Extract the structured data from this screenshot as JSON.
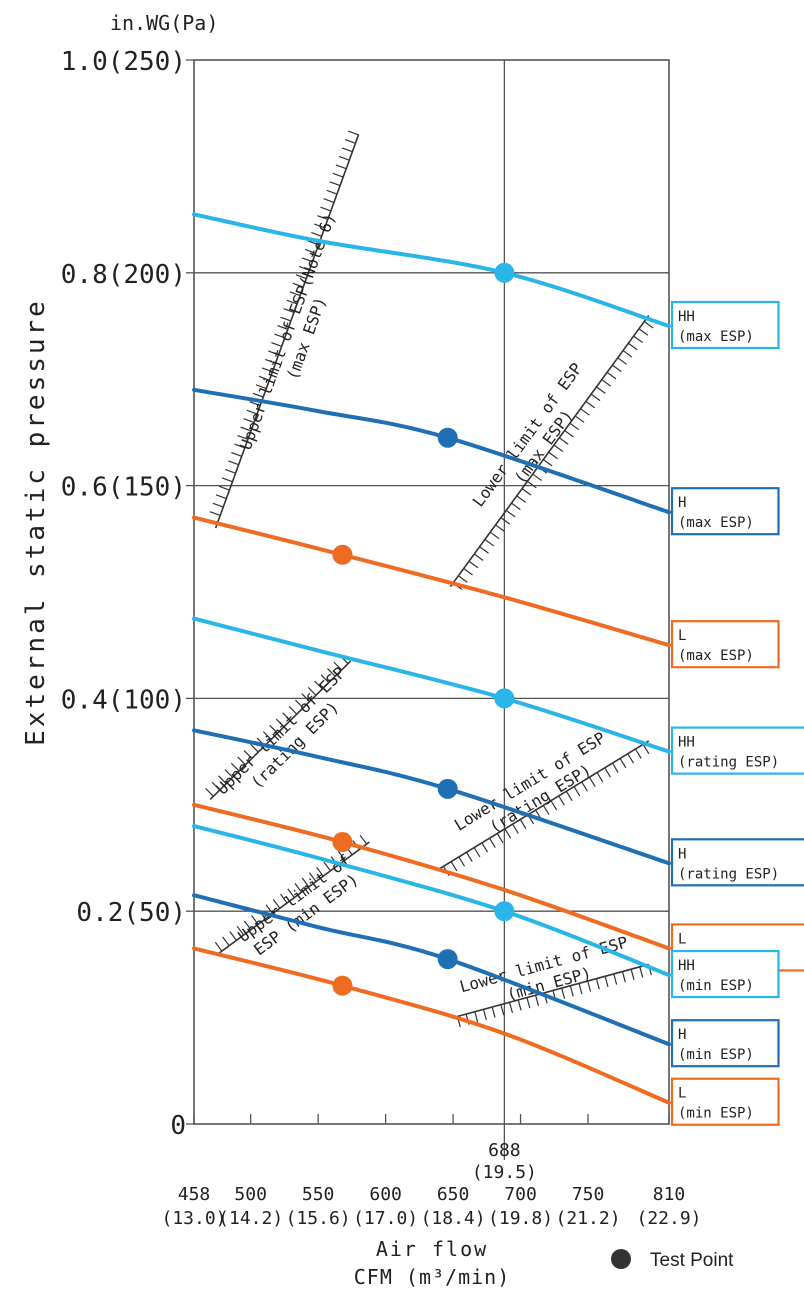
{
  "chart_data": {
    "type": "line",
    "title": "",
    "y_unit_label": "in.WG(Pa)",
    "ylabel": "External static pressure",
    "xlabel": [
      "Air flow",
      "CFM (m³/min)"
    ],
    "xlim": [
      458,
      810
    ],
    "ylim": [
      0,
      1.0
    ],
    "y_ticks": [
      {
        "value": 0,
        "label": "0"
      },
      {
        "value": 0.2,
        "label": "0.2(50)"
      },
      {
        "value": 0.4,
        "label": "0.4(100)"
      },
      {
        "value": 0.6,
        "label": "0.6(150)"
      },
      {
        "value": 0.8,
        "label": "0.8(200)"
      },
      {
        "value": 1.0,
        "label": "1.0(250)"
      }
    ],
    "x_ticks": [
      {
        "value": 458,
        "label": "458",
        "sub": "(13.0)"
      },
      {
        "value": 500,
        "label": "500",
        "sub": "(14.2)"
      },
      {
        "value": 550,
        "label": "550",
        "sub": "(15.6)"
      },
      {
        "value": 600,
        "label": "600",
        "sub": "(17.0)"
      },
      {
        "value": 650,
        "label": "650",
        "sub": "(18.4)"
      },
      {
        "value": 700,
        "label": "700",
        "sub": "(19.8)"
      },
      {
        "value": 750,
        "label": "750",
        "sub": "(21.2)"
      },
      {
        "value": 810,
        "label": "810",
        "sub": "(22.9)"
      }
    ],
    "rated_airflow": {
      "value": 688,
      "label": "688",
      "sub": "(19.5)"
    },
    "grid_y_values": [
      0.2,
      0.4,
      0.6,
      0.8
    ],
    "colors": {
      "HH": "#29b5e8",
      "H": "#1f6fb5",
      "L": "#ef6b21",
      "grid": "#555555",
      "limit": "#333333"
    },
    "series": [
      {
        "label": "HH (max ESP)",
        "fan": "HH",
        "x": [
          458,
          550,
          688,
          810
        ],
        "y": [
          0.855,
          0.83,
          0.8,
          0.75
        ]
      },
      {
        "label": "H (max ESP)",
        "fan": "H",
        "x": [
          458,
          550,
          646,
          810
        ],
        "y": [
          0.69,
          0.67,
          0.645,
          0.575
        ]
      },
      {
        "label": "L (max ESP)",
        "fan": "L",
        "x": [
          458,
          568,
          688,
          810
        ],
        "y": [
          0.57,
          0.535,
          0.495,
          0.45
        ]
      },
      {
        "label": "HH (rating ESP)",
        "fan": "HH",
        "x": [
          458,
          550,
          688,
          810
        ],
        "y": [
          0.475,
          0.445,
          0.4,
          0.35
        ]
      },
      {
        "label": "H (rating ESP)",
        "fan": "H",
        "x": [
          458,
          550,
          646,
          810
        ],
        "y": [
          0.37,
          0.345,
          0.315,
          0.245
        ]
      },
      {
        "label": "L (rating ESP)",
        "fan": "L",
        "x": [
          458,
          568,
          688,
          810
        ],
        "y": [
          0.3,
          0.265,
          0.22,
          0.165
        ]
      },
      {
        "label": "HH (min ESP)",
        "fan": "HH",
        "x": [
          458,
          550,
          688,
          810
        ],
        "y": [
          0.28,
          0.25,
          0.2,
          0.14
        ]
      },
      {
        "label": "H (min ESP)",
        "fan": "H",
        "x": [
          458,
          550,
          646,
          810
        ],
        "y": [
          0.215,
          0.185,
          0.155,
          0.075
        ]
      },
      {
        "label": "L (min ESP)",
        "fan": "L",
        "x": [
          458,
          568,
          688,
          810
        ],
        "y": [
          0.165,
          0.13,
          0.085,
          0.02
        ]
      }
    ],
    "test_points": [
      {
        "x": 688,
        "y": 0.8,
        "fan": "HH"
      },
      {
        "x": 646,
        "y": 0.645,
        "fan": "H"
      },
      {
        "x": 568,
        "y": 0.535,
        "fan": "L"
      },
      {
        "x": 688,
        "y": 0.4,
        "fan": "HH"
      },
      {
        "x": 646,
        "y": 0.315,
        "fan": "H"
      },
      {
        "x": 568,
        "y": 0.265,
        "fan": "L"
      },
      {
        "x": 688,
        "y": 0.2,
        "fan": "HH"
      },
      {
        "x": 646,
        "y": 0.155,
        "fan": "H"
      },
      {
        "x": 568,
        "y": 0.13,
        "fan": "L"
      }
    ],
    "limit_lines": [
      {
        "text": [
          "Upper limit of ESP(Note 6)",
          "(max ESP)"
        ],
        "x1": 474,
        "y1": 0.56,
        "x2": 580,
        "y2": 0.93,
        "hatch_side": "left"
      },
      {
        "text": [
          "Lower limit of ESP",
          "(max ESP)"
        ],
        "x1": 648,
        "y1": 0.505,
        "x2": 795,
        "y2": 0.76,
        "hatch_side": "right"
      },
      {
        "text": [
          "Upper limit of ESP",
          "(rating ESP)"
        ],
        "x1": 470,
        "y1": 0.305,
        "x2": 574,
        "y2": 0.435,
        "hatch_side": "left"
      },
      {
        "text": [
          "Lower limit of ESP",
          "(rating ESP)"
        ],
        "x1": 640,
        "y1": 0.24,
        "x2": 795,
        "y2": 0.36,
        "hatch_side": "right"
      },
      {
        "text": [
          "Upper limit of",
          "ESP (min ESP)"
        ],
        "x1": 476,
        "y1": 0.16,
        "x2": 588,
        "y2": 0.265,
        "hatch_side": "left"
      },
      {
        "text": [
          "Lower limit of ESP",
          "(min ESP)"
        ],
        "x1": 650,
        "y1": 0.1,
        "x2": 795,
        "y2": 0.15,
        "hatch_side": "right"
      }
    ],
    "legend": {
      "marker": "●",
      "text": "Test Point",
      "placement": "bottom-right"
    }
  }
}
